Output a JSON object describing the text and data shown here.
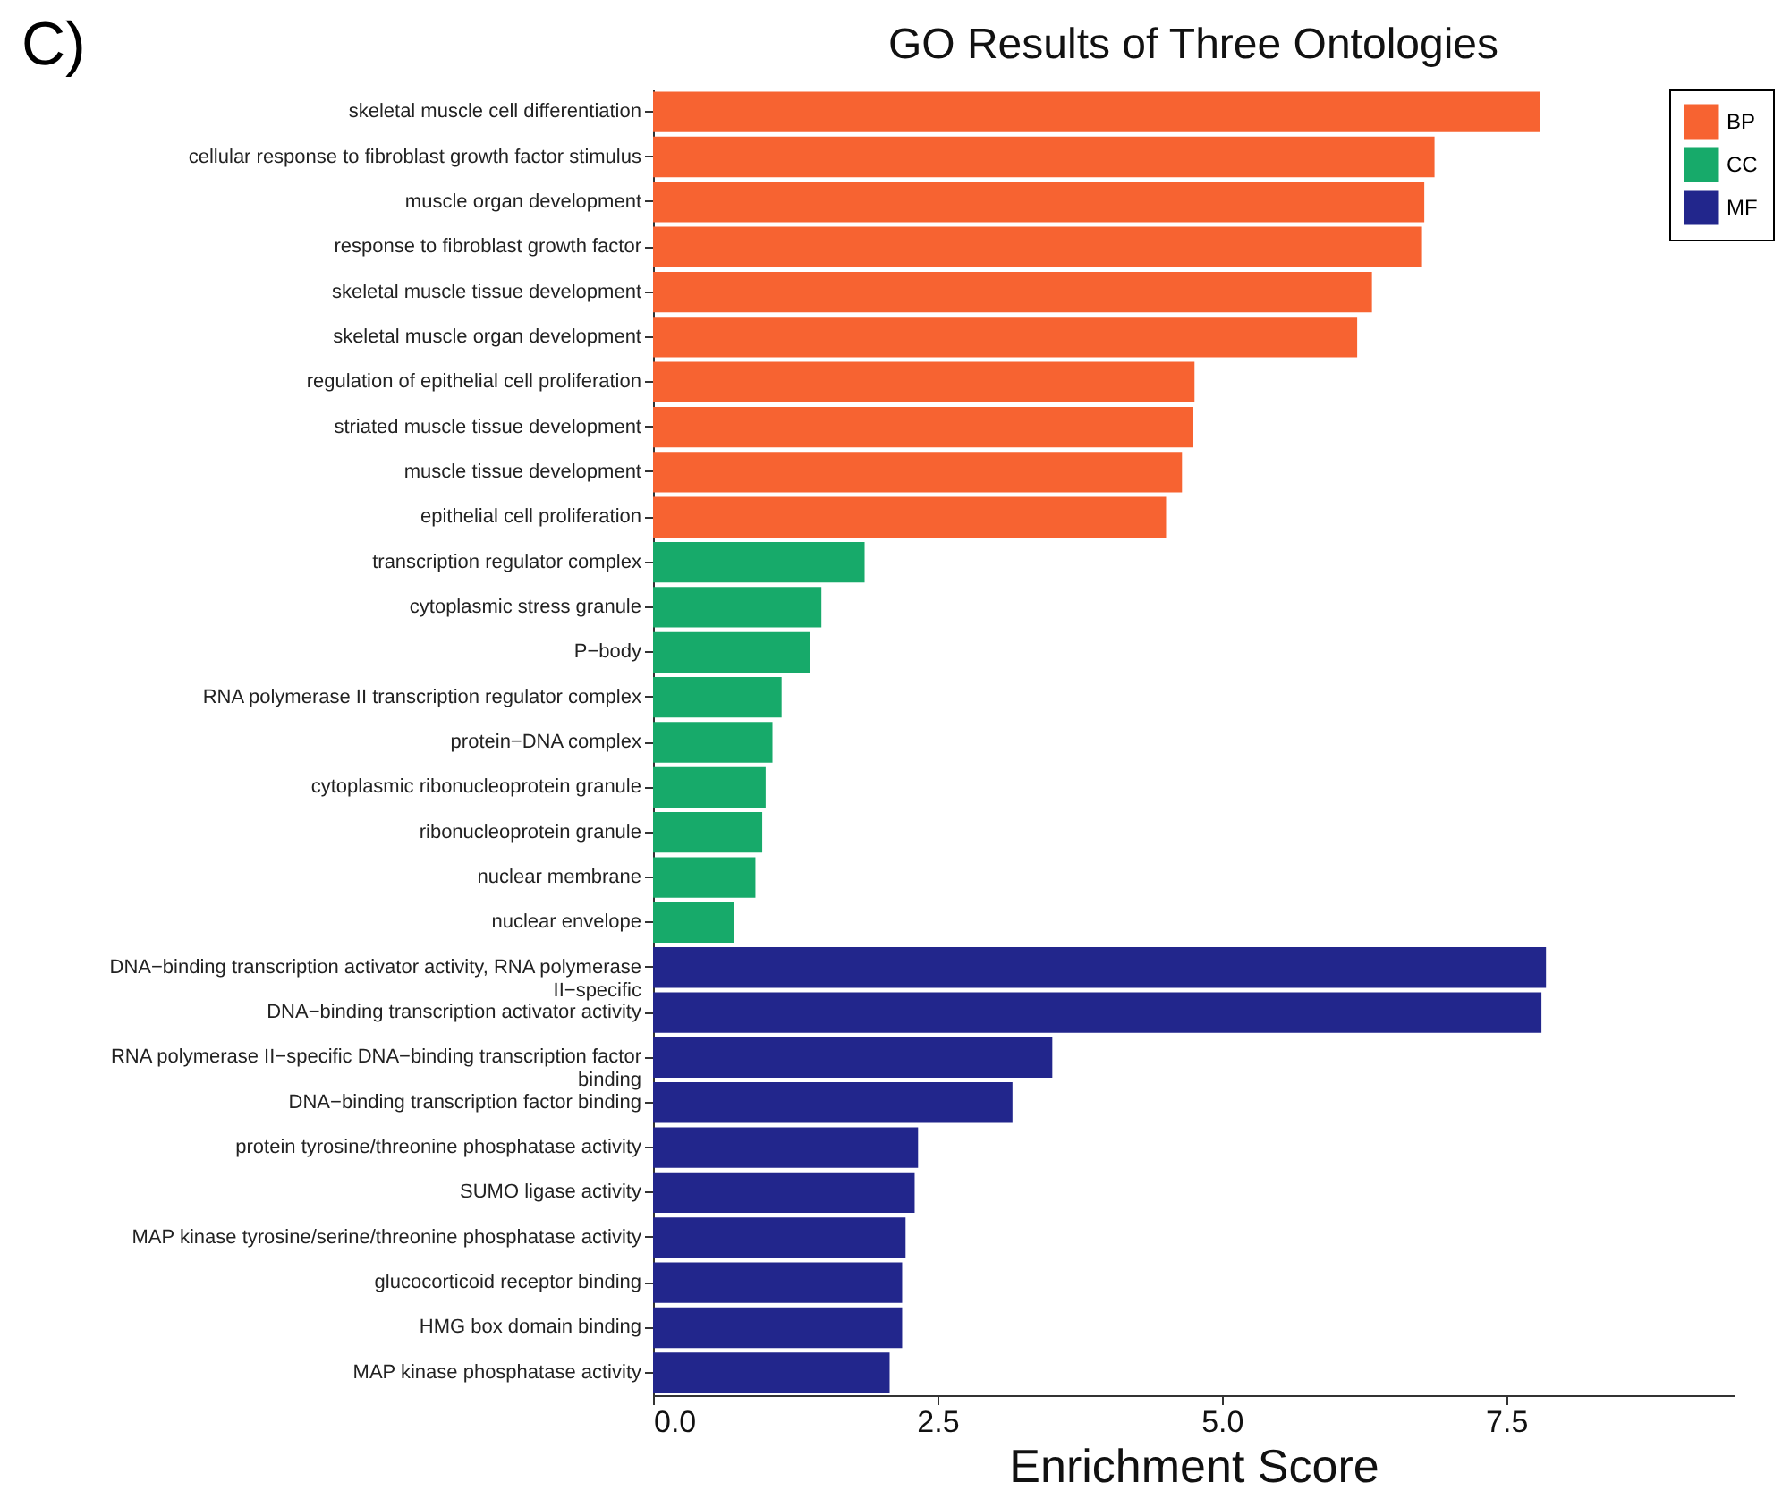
{
  "chart_data": {
    "type": "bar",
    "orientation": "horizontal",
    "title": "GO Results of Three Ontologies",
    "xlabel": "Enrichment Score",
    "annotations": [
      "C)"
    ],
    "categories": [
      "skeletal muscle cell differentiation",
      "cellular response to fibroblast growth factor stimulus",
      "muscle organ development",
      "response to fibroblast growth factor",
      "skeletal muscle tissue development",
      "skeletal muscle organ development",
      "regulation of epithelial cell proliferation",
      "striated muscle tissue development",
      "muscle tissue development",
      "epithelial cell proliferation",
      "transcription regulator complex",
      "cytoplasmic stress granule",
      "P−body",
      "RNA polymerase II transcription regulator complex",
      "protein−DNA complex",
      "cytoplasmic ribonucleoprotein granule",
      "ribonucleoprotein granule",
      "nuclear membrane",
      "nuclear envelope",
      "DNA−binding transcription activator activity, RNA polymerase II−specific",
      "DNA−binding transcription activator activity",
      "RNA polymerase II−specific DNA−binding transcription factor binding",
      "DNA−binding transcription factor binding",
      "protein tyrosine/threonine phosphatase activity",
      "SUMO ligase activity",
      "MAP kinase tyrosine/serine/threonine phosphatase activity",
      "glucocorticoid receptor binding",
      "HMG box domain binding",
      "MAP kinase phosphatase activity"
    ],
    "series": [
      {
        "name": "BP",
        "color": "#f76331",
        "values": [
          7.8,
          6.87,
          6.78,
          6.76,
          6.32,
          6.19,
          4.76,
          4.75,
          4.65,
          4.51,
          null,
          null,
          null,
          null,
          null,
          null,
          null,
          null,
          null,
          null,
          null,
          null,
          null,
          null,
          null,
          null,
          null,
          null,
          null
        ]
      },
      {
        "name": "CC",
        "color": "#17aa6a",
        "values": [
          null,
          null,
          null,
          null,
          null,
          null,
          null,
          null,
          null,
          null,
          1.86,
          1.48,
          1.38,
          1.13,
          1.05,
          0.99,
          0.96,
          0.9,
          0.71,
          null,
          null,
          null,
          null,
          null,
          null,
          null,
          null,
          null,
          null
        ]
      },
      {
        "name": "MF",
        "color": "#22268c",
        "values": [
          null,
          null,
          null,
          null,
          null,
          null,
          null,
          null,
          null,
          null,
          null,
          null,
          null,
          null,
          null,
          null,
          null,
          null,
          null,
          7.85,
          7.81,
          3.51,
          3.16,
          2.33,
          2.3,
          2.22,
          2.19,
          2.19,
          2.08
        ]
      }
    ],
    "xlim": [
      0,
      9.5
    ],
    "xticks": [
      {
        "value": 0,
        "label": "0.0"
      },
      {
        "value": 2.5,
        "label": "2.5"
      },
      {
        "value": 5,
        "label": "5.0"
      },
      {
        "value": 7.5,
        "label": "7.5"
      }
    ],
    "legend": "top right"
  }
}
